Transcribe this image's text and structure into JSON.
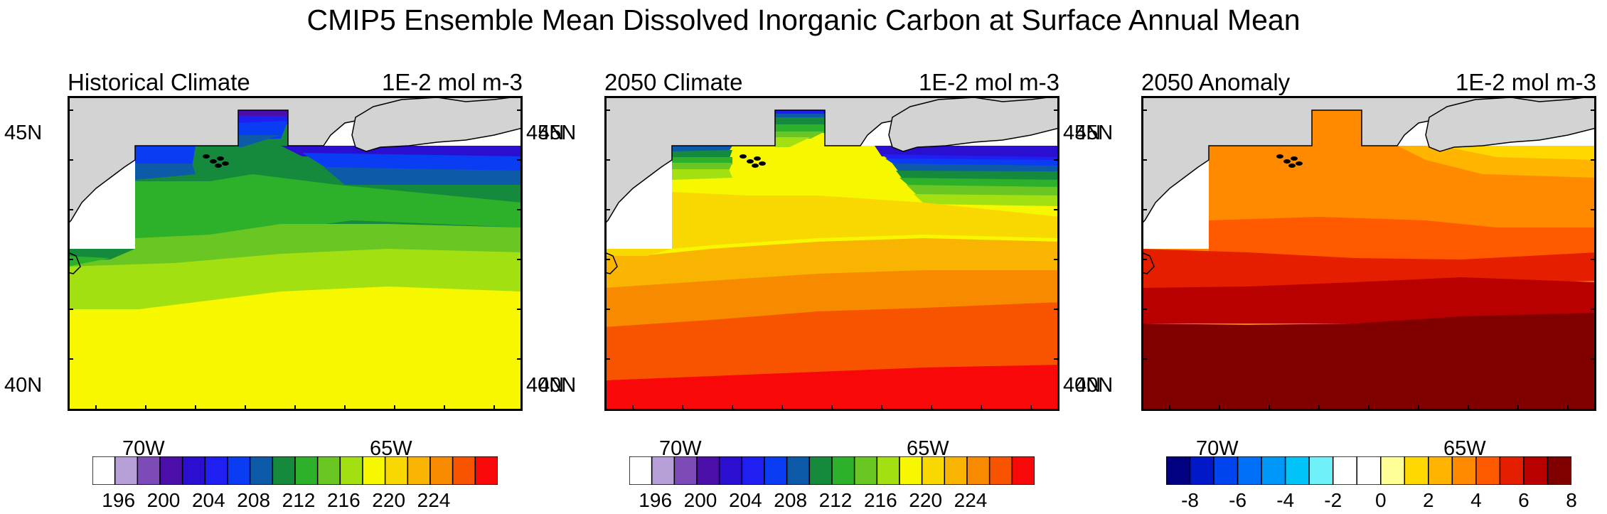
{
  "title": "CMIP5 Ensemble Mean Dissolved Inorganic Carbon at Surface Annual Mean",
  "units": "1E-2 mol m-3",
  "axes": {
    "lat_labels": [
      "45N",
      "40N"
    ],
    "lon_labels": [
      "70W",
      "65W"
    ],
    "lat_range": [
      39.5,
      45.3
    ],
    "lon_range": [
      -71.5,
      -62.5
    ]
  },
  "colors": {
    "land": "#d3d3d3",
    "nodata": "#ffffff",
    "coast": "#000000"
  },
  "panels": [
    {
      "id": "historical",
      "title": "Historical Climate",
      "colorbar": {
        "labels": [
          "196",
          "200",
          "204",
          "208",
          "212",
          "216",
          "220",
          "224"
        ],
        "colors": [
          "#ffffff",
          "#b7a0d8",
          "#7d4bb7",
          "#4b0ea8",
          "#2b0fd0",
          "#1f1ff2",
          "#0a3cf4",
          "#0c5aa8",
          "#168a3c",
          "#2db02a",
          "#6ac622",
          "#a3e012",
          "#f7f700",
          "#f8d800",
          "#f8b400",
          "#f88a00",
          "#f85400",
          "#f80808"
        ]
      }
    },
    {
      "id": "climate-2050",
      "title": "2050 Climate",
      "colorbar": {
        "labels": [
          "196",
          "200",
          "204",
          "208",
          "212",
          "216",
          "220",
          "224"
        ],
        "colors": [
          "#ffffff",
          "#b7a0d8",
          "#7d4bb7",
          "#4b0ea8",
          "#2b0fd0",
          "#1f1ff2",
          "#0a3cf4",
          "#0c5aa8",
          "#168a3c",
          "#2db02a",
          "#6ac622",
          "#a3e012",
          "#f7f700",
          "#f8d800",
          "#f8b400",
          "#f88a00",
          "#f85400",
          "#f80808"
        ]
      }
    },
    {
      "id": "anomaly-2050",
      "title": "2050 Anomaly",
      "colorbar": {
        "labels": [
          "-8",
          "-6",
          "-4",
          "-2",
          "0",
          "2",
          "4",
          "6",
          "8"
        ],
        "colors": [
          "#000080",
          "#0018c8",
          "#0044f0",
          "#0070f8",
          "#0098f8",
          "#00c4f8",
          "#70f0f8",
          "#ffffff",
          "#ffffff",
          "#ffff98",
          "#ffd800",
          "#ffb400",
          "#ff8a00",
          "#ff5a00",
          "#e61e00",
          "#b80000",
          "#800000"
        ]
      }
    }
  ]
}
